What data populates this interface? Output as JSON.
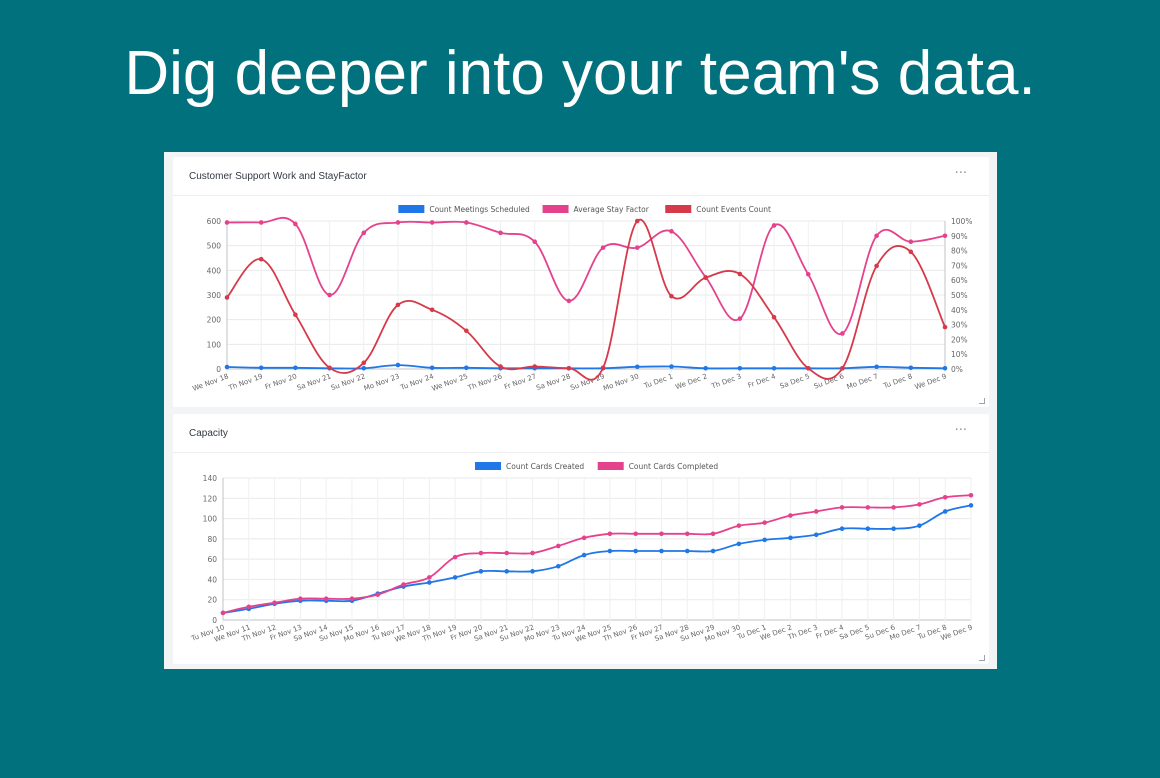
{
  "headline": "Dig deeper into your team's data.",
  "menu_glyph": "···",
  "panels": [
    {
      "title": "Customer Support Work and StayFactor"
    },
    {
      "title": "Capacity"
    }
  ],
  "chart_data": [
    {
      "type": "line",
      "title": "Customer Support Work and StayFactor",
      "categories": [
        "We Nov 18",
        "Th Nov 19",
        "Fr Nov 20",
        "Sa Nov 21",
        "Su Nov 22",
        "Mo Nov 23",
        "Tu Nov 24",
        "We Nov 25",
        "Th Nov 26",
        "Fr Nov 27",
        "Sa Nov 28",
        "Su Nov 29",
        "Mo Nov 30",
        "Tu Dec 1",
        "We Dec 2",
        "Th Dec 3",
        "Fr Dec 4",
        "Sa Dec 5",
        "Su Dec 6",
        "Mo Dec 7",
        "Tu Dec 8",
        "We Dec 9"
      ],
      "ylim": [
        0,
        600
      ],
      "yticks": [
        "0",
        "100",
        "200",
        "300",
        "400",
        "500",
        "600"
      ],
      "y2lim": [
        0,
        100
      ],
      "y2ticks": [
        "0%",
        "10%",
        "20%",
        "30%",
        "40%",
        "50%",
        "60%",
        "70%",
        "80%",
        "90%",
        "100%"
      ],
      "grid": true,
      "legend_position": "top",
      "series": [
        {
          "name": "Count Meetings Scheduled",
          "axis": "left",
          "color": "#1f77e8",
          "values": [
            8,
            5,
            5,
            3,
            3,
            16,
            5,
            5,
            3,
            3,
            3,
            3,
            9,
            10,
            3,
            3,
            3,
            3,
            3,
            9,
            5,
            3
          ]
        },
        {
          "name": "Average Stay Factor",
          "axis": "right",
          "color": "#e5428d",
          "values": [
            99,
            99,
            98,
            50,
            92,
            99,
            99,
            99,
            92,
            86,
            46,
            82,
            82,
            93,
            62,
            34,
            97,
            64,
            24,
            90,
            86,
            90
          ]
        },
        {
          "name": "Count Events Count",
          "axis": "left",
          "color": "#d63a4a",
          "values": [
            290,
            445,
            220,
            5,
            25,
            260,
            240,
            155,
            10,
            10,
            3,
            5,
            600,
            295,
            370,
            385,
            210,
            3,
            3,
            418,
            475,
            170
          ]
        }
      ]
    },
    {
      "type": "line",
      "title": "Capacity",
      "categories": [
        "Tu Nov 10",
        "We Nov 11",
        "Th Nov 12",
        "Fr Nov 13",
        "Sa Nov 14",
        "Su Nov 15",
        "Mo Nov 16",
        "Tu Nov 17",
        "We Nov 18",
        "Th Nov 19",
        "Fr Nov 20",
        "Sa Nov 21",
        "Su Nov 22",
        "Mo Nov 23",
        "Tu Nov 24",
        "We Nov 25",
        "Th Nov 26",
        "Fr Nov 27",
        "Sa Nov 28",
        "Su Nov 29",
        "Mo Nov 30",
        "Tu Dec 1",
        "We Dec 2",
        "Th Dec 3",
        "Fr Dec 4",
        "Sa Dec 5",
        "Su Dec 6",
        "Mo Dec 7",
        "Tu Dec 8",
        "We Dec 9"
      ],
      "ylim": [
        0,
        140
      ],
      "yticks": [
        "0",
        "20",
        "40",
        "60",
        "80",
        "100",
        "120",
        "140"
      ],
      "grid": true,
      "legend_position": "top",
      "series": [
        {
          "name": "Count Cards Created",
          "color": "#1f77e8",
          "values": [
            7,
            11,
            16,
            19,
            19,
            19,
            26,
            33,
            37,
            42,
            48,
            48,
            48,
            53,
            64,
            68,
            68,
            68,
            68,
            68,
            75,
            79,
            81,
            84,
            90,
            90,
            90,
            93,
            107,
            113
          ]
        },
        {
          "name": "Count Cards Completed",
          "color": "#e5428d",
          "values": [
            7,
            13,
            17,
            21,
            21,
            21,
            25,
            35,
            42,
            62,
            66,
            66,
            66,
            73,
            81,
            85,
            85,
            85,
            85,
            85,
            93,
            96,
            103,
            107,
            111,
            111,
            111,
            114,
            121,
            123
          ]
        }
      ]
    }
  ]
}
